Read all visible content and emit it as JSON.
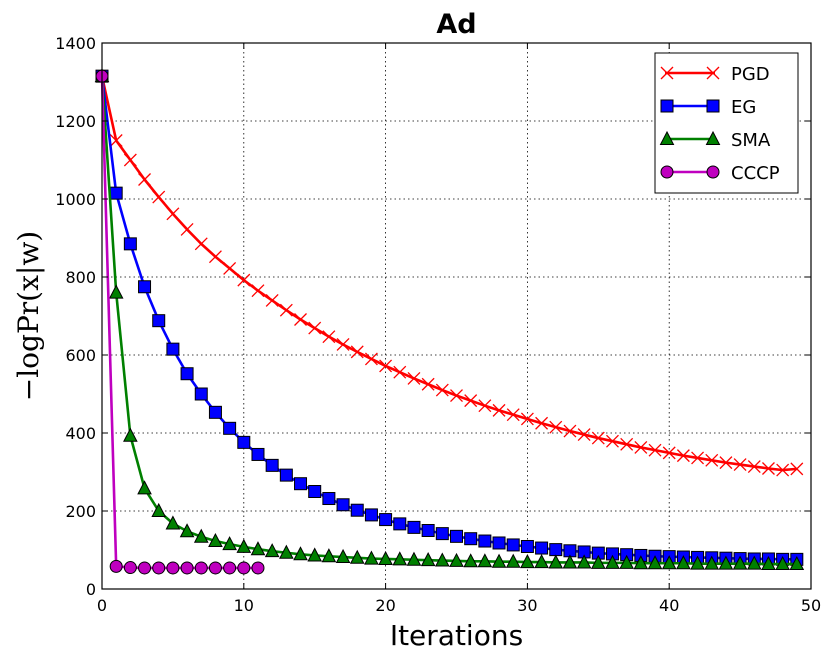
{
  "chart_data": {
    "type": "line",
    "title": "Ad",
    "xlabel": "Iterations",
    "ylabel": "−logPr(x|w)",
    "xlim": [
      0,
      50
    ],
    "ylim": [
      0,
      1400
    ],
    "xticks": [
      "0",
      "10",
      "20",
      "30",
      "40",
      "50"
    ],
    "yticks": [
      "0",
      "200",
      "400",
      "600",
      "800",
      "1000",
      "1200",
      "1400"
    ],
    "grid": true,
    "legend_position": "top-right",
    "series": [
      {
        "name": "PGD",
        "color": "#ff0000",
        "marker": "x",
        "x": [
          0,
          1,
          2,
          3,
          4,
          5,
          6,
          7,
          8,
          9,
          10,
          11,
          12,
          13,
          14,
          15,
          16,
          17,
          18,
          19,
          20,
          21,
          22,
          23,
          24,
          25,
          26,
          27,
          28,
          29,
          30,
          31,
          32,
          33,
          34,
          35,
          36,
          37,
          38,
          39,
          40,
          41,
          42,
          43,
          44,
          45,
          46,
          47,
          48,
          49
        ],
        "values": [
          1315,
          1150,
          1100,
          1050,
          1005,
          962,
          922,
          885,
          852,
          822,
          792,
          765,
          740,
          715,
          691,
          669,
          647,
          627,
          608,
          590,
          572,
          556,
          540,
          525,
          510,
          496,
          483,
          470,
          458,
          447,
          436,
          425,
          415,
          405,
          396,
          387,
          379,
          371,
          363,
          356,
          349,
          342,
          336,
          330,
          324,
          319,
          314,
          309,
          305,
          308
        ]
      },
      {
        "name": "EG",
        "color": "#0000ff",
        "marker": "square",
        "x": [
          0,
          1,
          2,
          3,
          4,
          5,
          6,
          7,
          8,
          9,
          10,
          11,
          12,
          13,
          14,
          15,
          16,
          17,
          18,
          19,
          20,
          21,
          22,
          23,
          24,
          25,
          26,
          27,
          28,
          29,
          30,
          31,
          32,
          33,
          34,
          35,
          36,
          37,
          38,
          39,
          40,
          41,
          42,
          43,
          44,
          45,
          46,
          47,
          48,
          49
        ],
        "values": [
          1315,
          1015,
          885,
          775,
          688,
          615,
          552,
          500,
          453,
          412,
          376,
          345,
          317,
          292,
          270,
          250,
          232,
          216,
          202,
          190,
          178,
          167,
          158,
          150,
          142,
          135,
          129,
          123,
          118,
          113,
          109,
          105,
          101,
          98,
          95,
          92,
          90,
          88,
          86,
          84,
          83,
          82,
          81,
          80,
          79,
          78,
          77,
          77,
          76,
          76
        ]
      },
      {
        "name": "SMA",
        "color": "#008000",
        "marker": "triangle",
        "x": [
          0,
          1,
          2,
          3,
          4,
          5,
          6,
          7,
          8,
          9,
          10,
          11,
          12,
          13,
          14,
          15,
          16,
          17,
          18,
          19,
          20,
          21,
          22,
          23,
          24,
          25,
          26,
          27,
          28,
          29,
          30,
          31,
          32,
          33,
          34,
          35,
          36,
          37,
          38,
          39,
          40,
          41,
          42,
          43,
          44,
          45,
          46,
          47,
          48,
          49
        ],
        "values": [
          1315,
          760,
          393,
          258,
          200,
          168,
          148,
          134,
          123,
          115,
          108,
          102,
          97,
          93,
          89,
          86,
          84,
          82,
          80,
          78,
          77,
          76,
          75,
          74,
          73,
          72,
          71,
          71,
          70,
          70,
          69,
          69,
          68,
          68,
          68,
          67,
          67,
          67,
          66,
          66,
          66,
          66,
          65,
          65,
          65,
          65,
          65,
          64,
          64,
          64
        ]
      },
      {
        "name": "CCCP",
        "color": "#bf00bf",
        "marker": "circle",
        "x": [
          0,
          1,
          2,
          3,
          4,
          5,
          6,
          7,
          8,
          9,
          10,
          11
        ],
        "values": [
          1315,
          58,
          55,
          54,
          54,
          54,
          54,
          54,
          54,
          54,
          54,
          54
        ]
      }
    ]
  }
}
